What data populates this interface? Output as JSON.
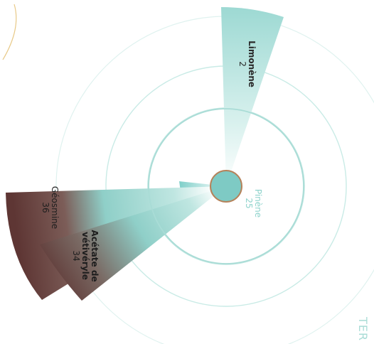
{
  "chart_data": {
    "type": "radial-bar",
    "series": [
      {
        "name": "Limonène",
        "value": 2
      },
      {
        "name": "Pinène",
        "value": 25
      },
      {
        "name": "Acétate de vétivéryle",
        "value": 34
      },
      {
        "name": "Géosmine",
        "value": 36
      }
    ],
    "labels": {
      "limonene_name": "Limonène",
      "limonene_value": "2",
      "pinene_name": "Pinène",
      "pinene_value": "25",
      "acetate_line1": "Acétate de",
      "acetate_line2": "vétivéryle",
      "acetate_value": "34",
      "geosmine_name": "Géosmine",
      "geosmine_value": "36"
    },
    "corner_text": "TER",
    "colors": {
      "teal": "#7fcfc9",
      "teal_light": "#d9f1ee",
      "maroon": "#5e3634",
      "center_fill": "#7ecac4",
      "center_stroke": "#b5825a",
      "ring": "#a9dcd6",
      "ring_faint": "#dff2ef",
      "gold": "#e8c987"
    }
  }
}
